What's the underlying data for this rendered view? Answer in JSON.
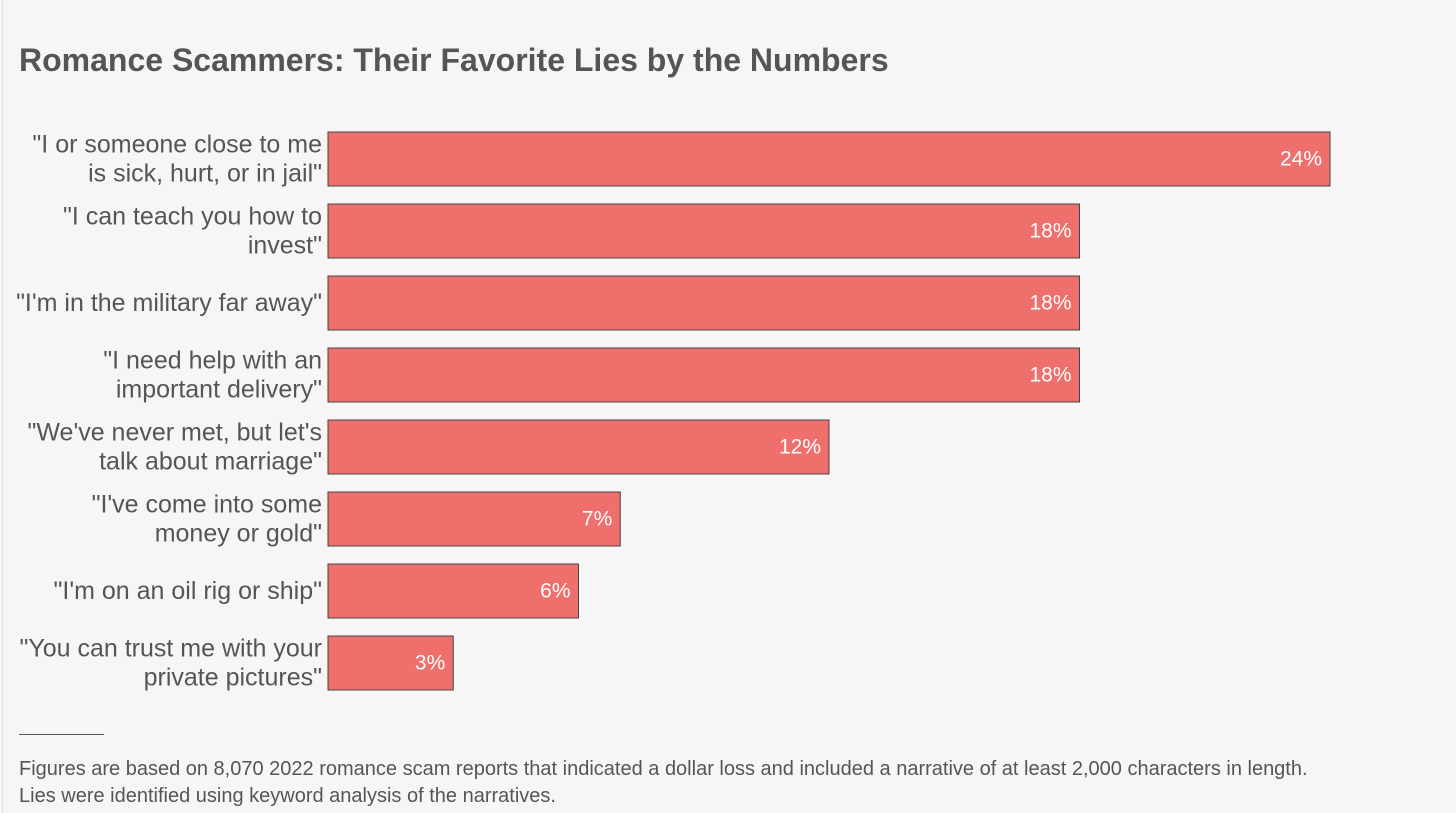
{
  "colors": {
    "background": "#f6f6f6",
    "bar_fill": "#ef6f6c",
    "bar_stroke": "#444444",
    "text": "#555555",
    "value_text": "#ffffff"
  },
  "footnote": {
    "line1": "Figures are based on 8,070 2022 romance scam reports that indicated a dollar loss and included a narrative of at least 2,000 characters in length.",
    "line2": "Lies were identified using keyword analysis of the narratives."
  },
  "chart_data": {
    "type": "bar",
    "orientation": "horizontal",
    "title": "Romance Scammers: Their Favorite Lies by the Numbers",
    "categories": [
      [
        "\"I or someone close to me",
        "is sick, hurt, or in jail\""
      ],
      [
        "\"I can teach you how to",
        "invest\""
      ],
      [
        "\"I'm in the military far away\""
      ],
      [
        "\"I need help with an",
        "important delivery\""
      ],
      [
        "\"We've never met, but let's",
        "talk about marriage\""
      ],
      [
        "\"I've come into some",
        "money or gold\""
      ],
      [
        "\"I'm on an oil rig or ship\""
      ],
      [
        "\"You can trust me with your",
        "private pictures\""
      ]
    ],
    "values": [
      24,
      18,
      18,
      18,
      12,
      7,
      6,
      3
    ],
    "value_labels": [
      "24%",
      "18%",
      "18%",
      "18%",
      "12%",
      "7%",
      "6%",
      "3%"
    ],
    "unit": "%",
    "xlim": [
      0,
      24
    ],
    "grid": false,
    "legend": "none"
  }
}
